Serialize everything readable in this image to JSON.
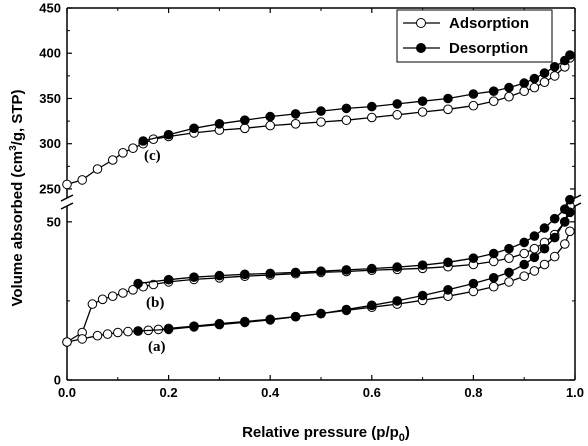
{
  "chart_data": {
    "type": "line",
    "xlabel": "Relative pressure (p/p",
    "xlabel_sub": "0",
    "xlabel_end": ")",
    "ylabel_pre": "Volume absorbed (cm",
    "ylabel_sup": "3",
    "ylabel_post": "/g, STP)",
    "x_ticks": [
      "0.0",
      "0.2",
      "0.4",
      "0.6",
      "0.8",
      "1.0"
    ],
    "y_ticks_upper": [
      "250",
      "300",
      "350",
      "400",
      "450"
    ],
    "y_ticks_lower": [
      "0",
      "50"
    ],
    "xlim": [
      0,
      1
    ],
    "ylim_upper": [
      240,
      450
    ],
    "ylim_lower": [
      0,
      55
    ],
    "broken_axis": true,
    "legend": {
      "placement": "top-right",
      "entries": [
        {
          "label": "Adsorption",
          "marker": "open-circle"
        },
        {
          "label": "Desorption",
          "marker": "filled-circle"
        }
      ]
    },
    "annotations": [
      "(c)",
      "(b)",
      "(a)"
    ],
    "series": [
      {
        "sample": "c",
        "branch": "adsorption",
        "x": [
          0.0,
          0.03,
          0.06,
          0.09,
          0.11,
          0.13,
          0.15,
          0.17,
          0.2,
          0.25,
          0.3,
          0.35,
          0.4,
          0.45,
          0.5,
          0.55,
          0.6,
          0.65,
          0.7,
          0.75,
          0.8,
          0.84,
          0.87,
          0.9,
          0.92,
          0.94,
          0.96,
          0.98,
          0.99
        ],
        "y": [
          255,
          260,
          272,
          282,
          290,
          295,
          300,
          305,
          308,
          312,
          315,
          317,
          320,
          322,
          324,
          326,
          329,
          332,
          335,
          338,
          342,
          347,
          352,
          358,
          362,
          368,
          375,
          385,
          395
        ]
      },
      {
        "sample": "c",
        "branch": "desorption",
        "x": [
          0.99,
          0.98,
          0.96,
          0.94,
          0.92,
          0.9,
          0.87,
          0.84,
          0.8,
          0.75,
          0.7,
          0.65,
          0.6,
          0.55,
          0.5,
          0.45,
          0.4,
          0.35,
          0.3,
          0.25,
          0.2,
          0.15
        ],
        "y": [
          398,
          392,
          385,
          378,
          372,
          367,
          362,
          358,
          355,
          350,
          347,
          344,
          341,
          339,
          336,
          333,
          330,
          326,
          322,
          317,
          310,
          303
        ]
      },
      {
        "sample": "b",
        "branch": "adsorption",
        "x": [
          0.0,
          0.03,
          0.05,
          0.07,
          0.09,
          0.11,
          0.13,
          0.15,
          0.17,
          0.2,
          0.25,
          0.3,
          0.35,
          0.4,
          0.45,
          0.5,
          0.55,
          0.6,
          0.65,
          0.7,
          0.75,
          0.8,
          0.84,
          0.87,
          0.9,
          0.92,
          0.94,
          0.96,
          0.98,
          0.99
        ],
        "y": [
          12,
          15,
          24,
          25.5,
          26.5,
          27.5,
          28.5,
          29.5,
          30.2,
          31,
          31.8,
          32.3,
          32.8,
          33.2,
          33.6,
          34,
          34.3,
          34.7,
          35,
          35.3,
          35.8,
          36.5,
          37.5,
          38.5,
          40,
          41.5,
          43.5,
          46,
          50,
          55
        ]
      },
      {
        "sample": "b",
        "branch": "desorption",
        "x": [
          0.99,
          0.98,
          0.96,
          0.94,
          0.92,
          0.9,
          0.87,
          0.84,
          0.8,
          0.75,
          0.7,
          0.65,
          0.6,
          0.55,
          0.5,
          0.45,
          0.4,
          0.35,
          0.3,
          0.25,
          0.2,
          0.14
        ],
        "y": [
          57,
          54,
          51,
          48,
          45.5,
          43.5,
          41.5,
          40,
          38.5,
          37.2,
          36.3,
          35.7,
          35.2,
          34.8,
          34.4,
          34,
          33.7,
          33.4,
          33,
          32.5,
          31.7,
          30.5
        ]
      },
      {
        "sample": "a",
        "branch": "adsorption",
        "x": [
          0.0,
          0.03,
          0.06,
          0.08,
          0.1,
          0.12,
          0.14,
          0.16,
          0.18,
          0.2,
          0.25,
          0.3,
          0.35,
          0.4,
          0.45,
          0.5,
          0.55,
          0.6,
          0.65,
          0.7,
          0.75,
          0.8,
          0.84,
          0.87,
          0.9,
          0.92,
          0.94,
          0.96,
          0.98,
          0.99
        ],
        "y": [
          12,
          13,
          14,
          14.5,
          15,
          15.3,
          15.5,
          15.7,
          16,
          16.3,
          17,
          17.8,
          18.5,
          19.2,
          20,
          21,
          22,
          23,
          24,
          25.2,
          26.5,
          28,
          29.5,
          31,
          32.8,
          34.5,
          36.5,
          39,
          43,
          47
        ]
      },
      {
        "sample": "a",
        "branch": "desorption",
        "x": [
          0.99,
          0.98,
          0.96,
          0.94,
          0.92,
          0.9,
          0.87,
          0.84,
          0.8,
          0.75,
          0.7,
          0.65,
          0.6,
          0.55,
          0.5,
          0.45,
          0.4,
          0.35,
          0.3,
          0.25,
          0.2,
          0.14
        ],
        "y": [
          53,
          50,
          45,
          41.5,
          38.8,
          36.5,
          34,
          32.3,
          30.5,
          28.5,
          26.7,
          25,
          23.6,
          22.3,
          21,
          20,
          19,
          18.2,
          17.5,
          16.8,
          16,
          15.5
        ]
      }
    ]
  }
}
